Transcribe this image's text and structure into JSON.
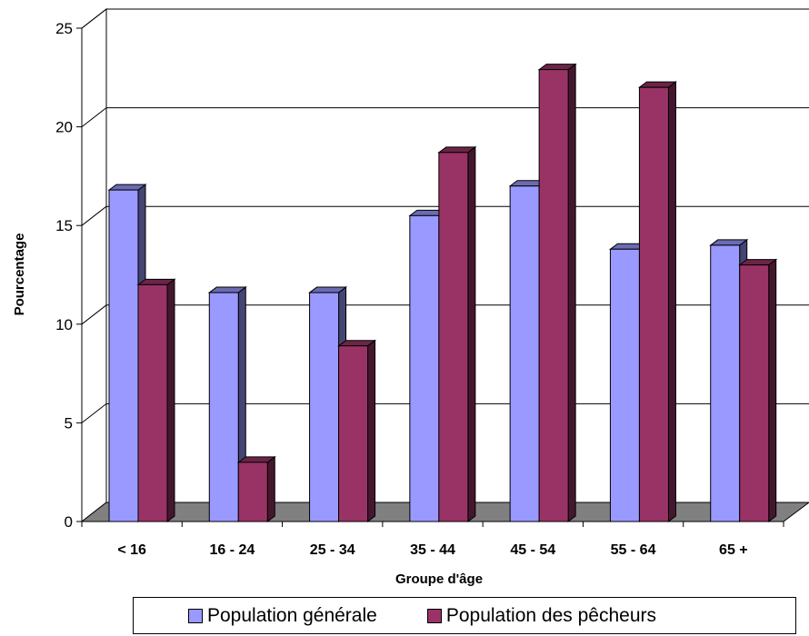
{
  "chart_data": {
    "type": "bar",
    "title": "",
    "xlabel": "Groupe d'âge",
    "ylabel": "Pourcentage",
    "categories": [
      "< 16",
      "16 - 24",
      "25 - 34",
      "35 - 44",
      "45 - 54",
      "55 - 64",
      "65 +"
    ],
    "series": [
      {
        "name": "Population générale",
        "color": "#9999ff",
        "values": [
          16.8,
          11.6,
          11.6,
          15.5,
          17.0,
          13.8,
          14.0
        ]
      },
      {
        "name": "Population des pêcheurs",
        "color": "#993366",
        "values": [
          12.0,
          3.0,
          8.9,
          18.7,
          22.9,
          22.0,
          13.0
        ]
      }
    ],
    "ylim": [
      0,
      25
    ],
    "yticks": [
      0,
      5,
      10,
      15,
      20,
      25
    ],
    "grid": true,
    "legend": "bottom",
    "style": "3d-clustered"
  }
}
